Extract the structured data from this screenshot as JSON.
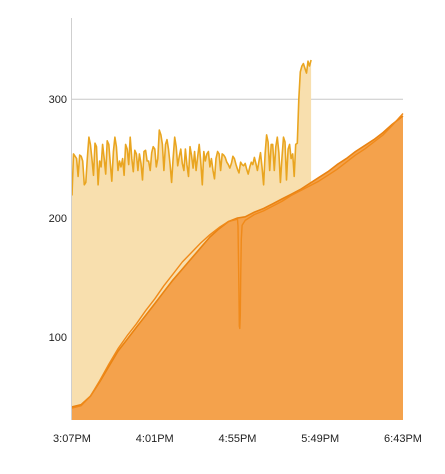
{
  "colors": {
    "background": "#ffffff",
    "upper_fill": "#f8dfae",
    "upper_line": "#e9a520",
    "lower_fill": "#f4a24c",
    "lower_line": "#e98312",
    "lower_line2": "#f08a1a",
    "grid": "#c8c8c8",
    "axis": "#cfcfcf"
  },
  "chart_data": {
    "type": "area",
    "grid": true,
    "ylim": [
      30,
      365
    ],
    "y_ticks": [
      100,
      200,
      300
    ],
    "y_tick_labels": [
      "100",
      "200",
      "300"
    ],
    "x_range_minutes": [
      0,
      216
    ],
    "x_tick_minutes": [
      0,
      54,
      108,
      162,
      216
    ],
    "x_tick_labels": [
      "3:07PM",
      "4:01PM",
      "4:55PM",
      "5:49PM",
      "6:43PM"
    ],
    "series": [
      {
        "role": "upper",
        "points": [
          [
            0,
            219
          ],
          [
            1,
            254
          ],
          [
            2,
            252
          ],
          [
            3,
            250
          ],
          [
            4,
            235
          ],
          [
            5,
            253
          ],
          [
            6,
            252
          ],
          [
            7,
            248
          ],
          [
            8,
            228
          ],
          [
            9,
            230
          ],
          [
            10,
            250
          ],
          [
            11,
            268
          ],
          [
            12,
            262
          ],
          [
            13,
            250
          ],
          [
            14,
            236
          ],
          [
            15,
            263
          ],
          [
            16,
            260
          ],
          [
            17,
            228
          ],
          [
            18,
            248
          ],
          [
            19,
            243
          ],
          [
            20,
            262
          ],
          [
            21,
            250
          ],
          [
            22,
            237
          ],
          [
            23,
            265
          ],
          [
            24,
            262
          ],
          [
            25,
            246
          ],
          [
            26,
            231
          ],
          [
            27,
            256
          ],
          [
            28,
            268
          ],
          [
            29,
            260
          ],
          [
            30,
            240
          ],
          [
            31,
            248
          ],
          [
            32,
            243
          ],
          [
            33,
            250
          ],
          [
            34,
            236
          ],
          [
            35,
            262
          ],
          [
            36,
            258
          ],
          [
            37,
            245
          ],
          [
            38,
            268
          ],
          [
            39,
            250
          ],
          [
            40,
            239
          ],
          [
            41,
            257
          ],
          [
            42,
            254
          ],
          [
            43,
            240
          ],
          [
            44,
            254
          ],
          [
            45,
            246
          ],
          [
            46,
            232
          ],
          [
            47,
            256
          ],
          [
            48,
            257
          ],
          [
            49,
            248
          ],
          [
            50,
            248
          ],
          [
            51,
            240
          ],
          [
            52,
            255
          ],
          [
            53,
            260
          ],
          [
            54,
            258
          ],
          [
            55,
            243
          ],
          [
            56,
            250
          ],
          [
            57,
            274
          ],
          [
            58,
            270
          ],
          [
            59,
            262
          ],
          [
            60,
            240
          ],
          [
            61,
            262
          ],
          [
            62,
            266
          ],
          [
            63,
            258
          ],
          [
            64,
            245
          ],
          [
            65,
            230
          ],
          [
            66,
            250
          ],
          [
            67,
            268
          ],
          [
            68,
            260
          ],
          [
            69,
            244
          ],
          [
            70,
            252
          ],
          [
            71,
            258
          ],
          [
            72,
            246
          ],
          [
            73,
            240
          ],
          [
            74,
            258
          ],
          [
            75,
            245
          ],
          [
            76,
            235
          ],
          [
            77,
            260
          ],
          [
            78,
            253
          ],
          [
            79,
            242
          ],
          [
            80,
            256
          ],
          [
            81,
            240
          ],
          [
            82,
            252
          ],
          [
            83,
            262
          ],
          [
            84,
            248
          ],
          [
            85,
            228
          ],
          [
            86,
            256
          ],
          [
            87,
            248
          ],
          [
            88,
            254
          ],
          [
            89,
            256
          ],
          [
            90,
            243
          ],
          [
            91,
            250
          ],
          [
            92,
            240
          ],
          [
            93,
            233
          ],
          [
            94,
            250
          ],
          [
            95,
            256
          ],
          [
            96,
            254
          ],
          [
            97,
            240
          ],
          [
            98,
            254
          ],
          [
            99,
            253
          ],
          [
            100,
            251
          ],
          [
            101,
            247
          ],
          [
            102,
            245
          ],
          [
            103,
            242
          ],
          [
            104,
            246
          ],
          [
            105,
            252
          ],
          [
            106,
            250
          ],
          [
            107,
            245
          ],
          [
            108,
            241
          ],
          [
            109,
            238
          ],
          [
            110,
            247
          ],
          [
            111,
            245
          ],
          [
            112,
            244
          ],
          [
            113,
            246
          ],
          [
            114,
            241
          ],
          [
            115,
            237
          ],
          [
            116,
            243
          ],
          [
            117,
            247
          ],
          [
            118,
            245
          ],
          [
            119,
            251
          ],
          [
            120,
            246
          ],
          [
            121,
            240
          ],
          [
            122,
            248
          ],
          [
            123,
            255
          ],
          [
            124,
            243
          ],
          [
            125,
            228
          ],
          [
            126,
            254
          ],
          [
            127,
            270
          ],
          [
            128,
            264
          ],
          [
            129,
            240
          ],
          [
            130,
            262
          ],
          [
            131,
            262
          ],
          [
            132,
            240
          ],
          [
            133,
            260
          ],
          [
            134,
            268
          ],
          [
            135,
            255
          ],
          [
            136,
            230
          ],
          [
            137,
            250
          ],
          [
            138,
            268
          ],
          [
            139,
            264
          ],
          [
            140,
            232
          ],
          [
            141,
            258
          ],
          [
            142,
            262
          ],
          [
            143,
            250
          ],
          [
            144,
            254
          ],
          [
            145,
            235
          ],
          [
            146,
            262
          ],
          [
            147,
            263
          ],
          [
            148,
            300
          ],
          [
            149,
            323
          ],
          [
            150,
            328
          ],
          [
            151,
            330
          ],
          [
            152,
            326
          ],
          [
            153,
            322
          ],
          [
            154,
            332
          ],
          [
            155,
            328
          ],
          [
            156,
            333
          ]
        ]
      },
      {
        "role": "lower",
        "points": [
          [
            0,
            41
          ],
          [
            6,
            43
          ],
          [
            12,
            50
          ],
          [
            18,
            62
          ],
          [
            24,
            75
          ],
          [
            30,
            88
          ],
          [
            36,
            98
          ],
          [
            42,
            108
          ],
          [
            48,
            118
          ],
          [
            54,
            128
          ],
          [
            60,
            138
          ],
          [
            66,
            148
          ],
          [
            72,
            157
          ],
          [
            78,
            166
          ],
          [
            84,
            175
          ],
          [
            90,
            184
          ],
          [
            96,
            191
          ],
          [
            102,
            197
          ],
          [
            108,
            200
          ],
          [
            113,
            201
          ],
          [
            119,
            205
          ],
          [
            125,
            208
          ],
          [
            131,
            212
          ],
          [
            137,
            216
          ],
          [
            143,
            220
          ],
          [
            149,
            224
          ],
          [
            155,
            229
          ],
          [
            161,
            234
          ],
          [
            167,
            239
          ],
          [
            173,
            245
          ],
          [
            179,
            250
          ],
          [
            185,
            256
          ],
          [
            191,
            261
          ],
          [
            197,
            266
          ],
          [
            203,
            272
          ],
          [
            209,
            279
          ],
          [
            216,
            286
          ]
        ]
      },
      {
        "role": "lower-2",
        "points": [
          [
            0,
            40
          ],
          [
            6,
            42
          ],
          [
            12,
            50
          ],
          [
            18,
            63
          ],
          [
            24,
            77
          ],
          [
            30,
            90
          ],
          [
            36,
            101
          ],
          [
            42,
            111
          ],
          [
            48,
            122
          ],
          [
            54,
            132
          ],
          [
            60,
            143
          ],
          [
            66,
            153
          ],
          [
            72,
            163
          ],
          [
            78,
            171
          ],
          [
            84,
            179
          ],
          [
            90,
            186
          ],
          [
            96,
            192
          ],
          [
            102,
            197
          ],
          [
            108,
            199
          ],
          [
            108.3,
            193
          ],
          [
            108.6,
            170
          ],
          [
            108.9,
            140
          ],
          [
            109.2,
            109
          ],
          [
            109.5,
            107
          ],
          [
            109.8,
            118
          ],
          [
            110.1,
            150
          ],
          [
            110.5,
            182
          ],
          [
            111,
            194
          ],
          [
            113,
            198
          ],
          [
            119,
            203
          ],
          [
            125,
            206
          ],
          [
            131,
            210
          ],
          [
            137,
            214
          ],
          [
            143,
            219
          ],
          [
            149,
            223
          ],
          [
            155,
            227
          ],
          [
            161,
            231
          ],
          [
            167,
            236
          ],
          [
            173,
            241
          ],
          [
            179,
            247
          ],
          [
            185,
            253
          ],
          [
            191,
            258
          ],
          [
            197,
            264
          ],
          [
            203,
            270
          ],
          [
            209,
            278
          ],
          [
            216,
            288
          ]
        ]
      }
    ]
  }
}
